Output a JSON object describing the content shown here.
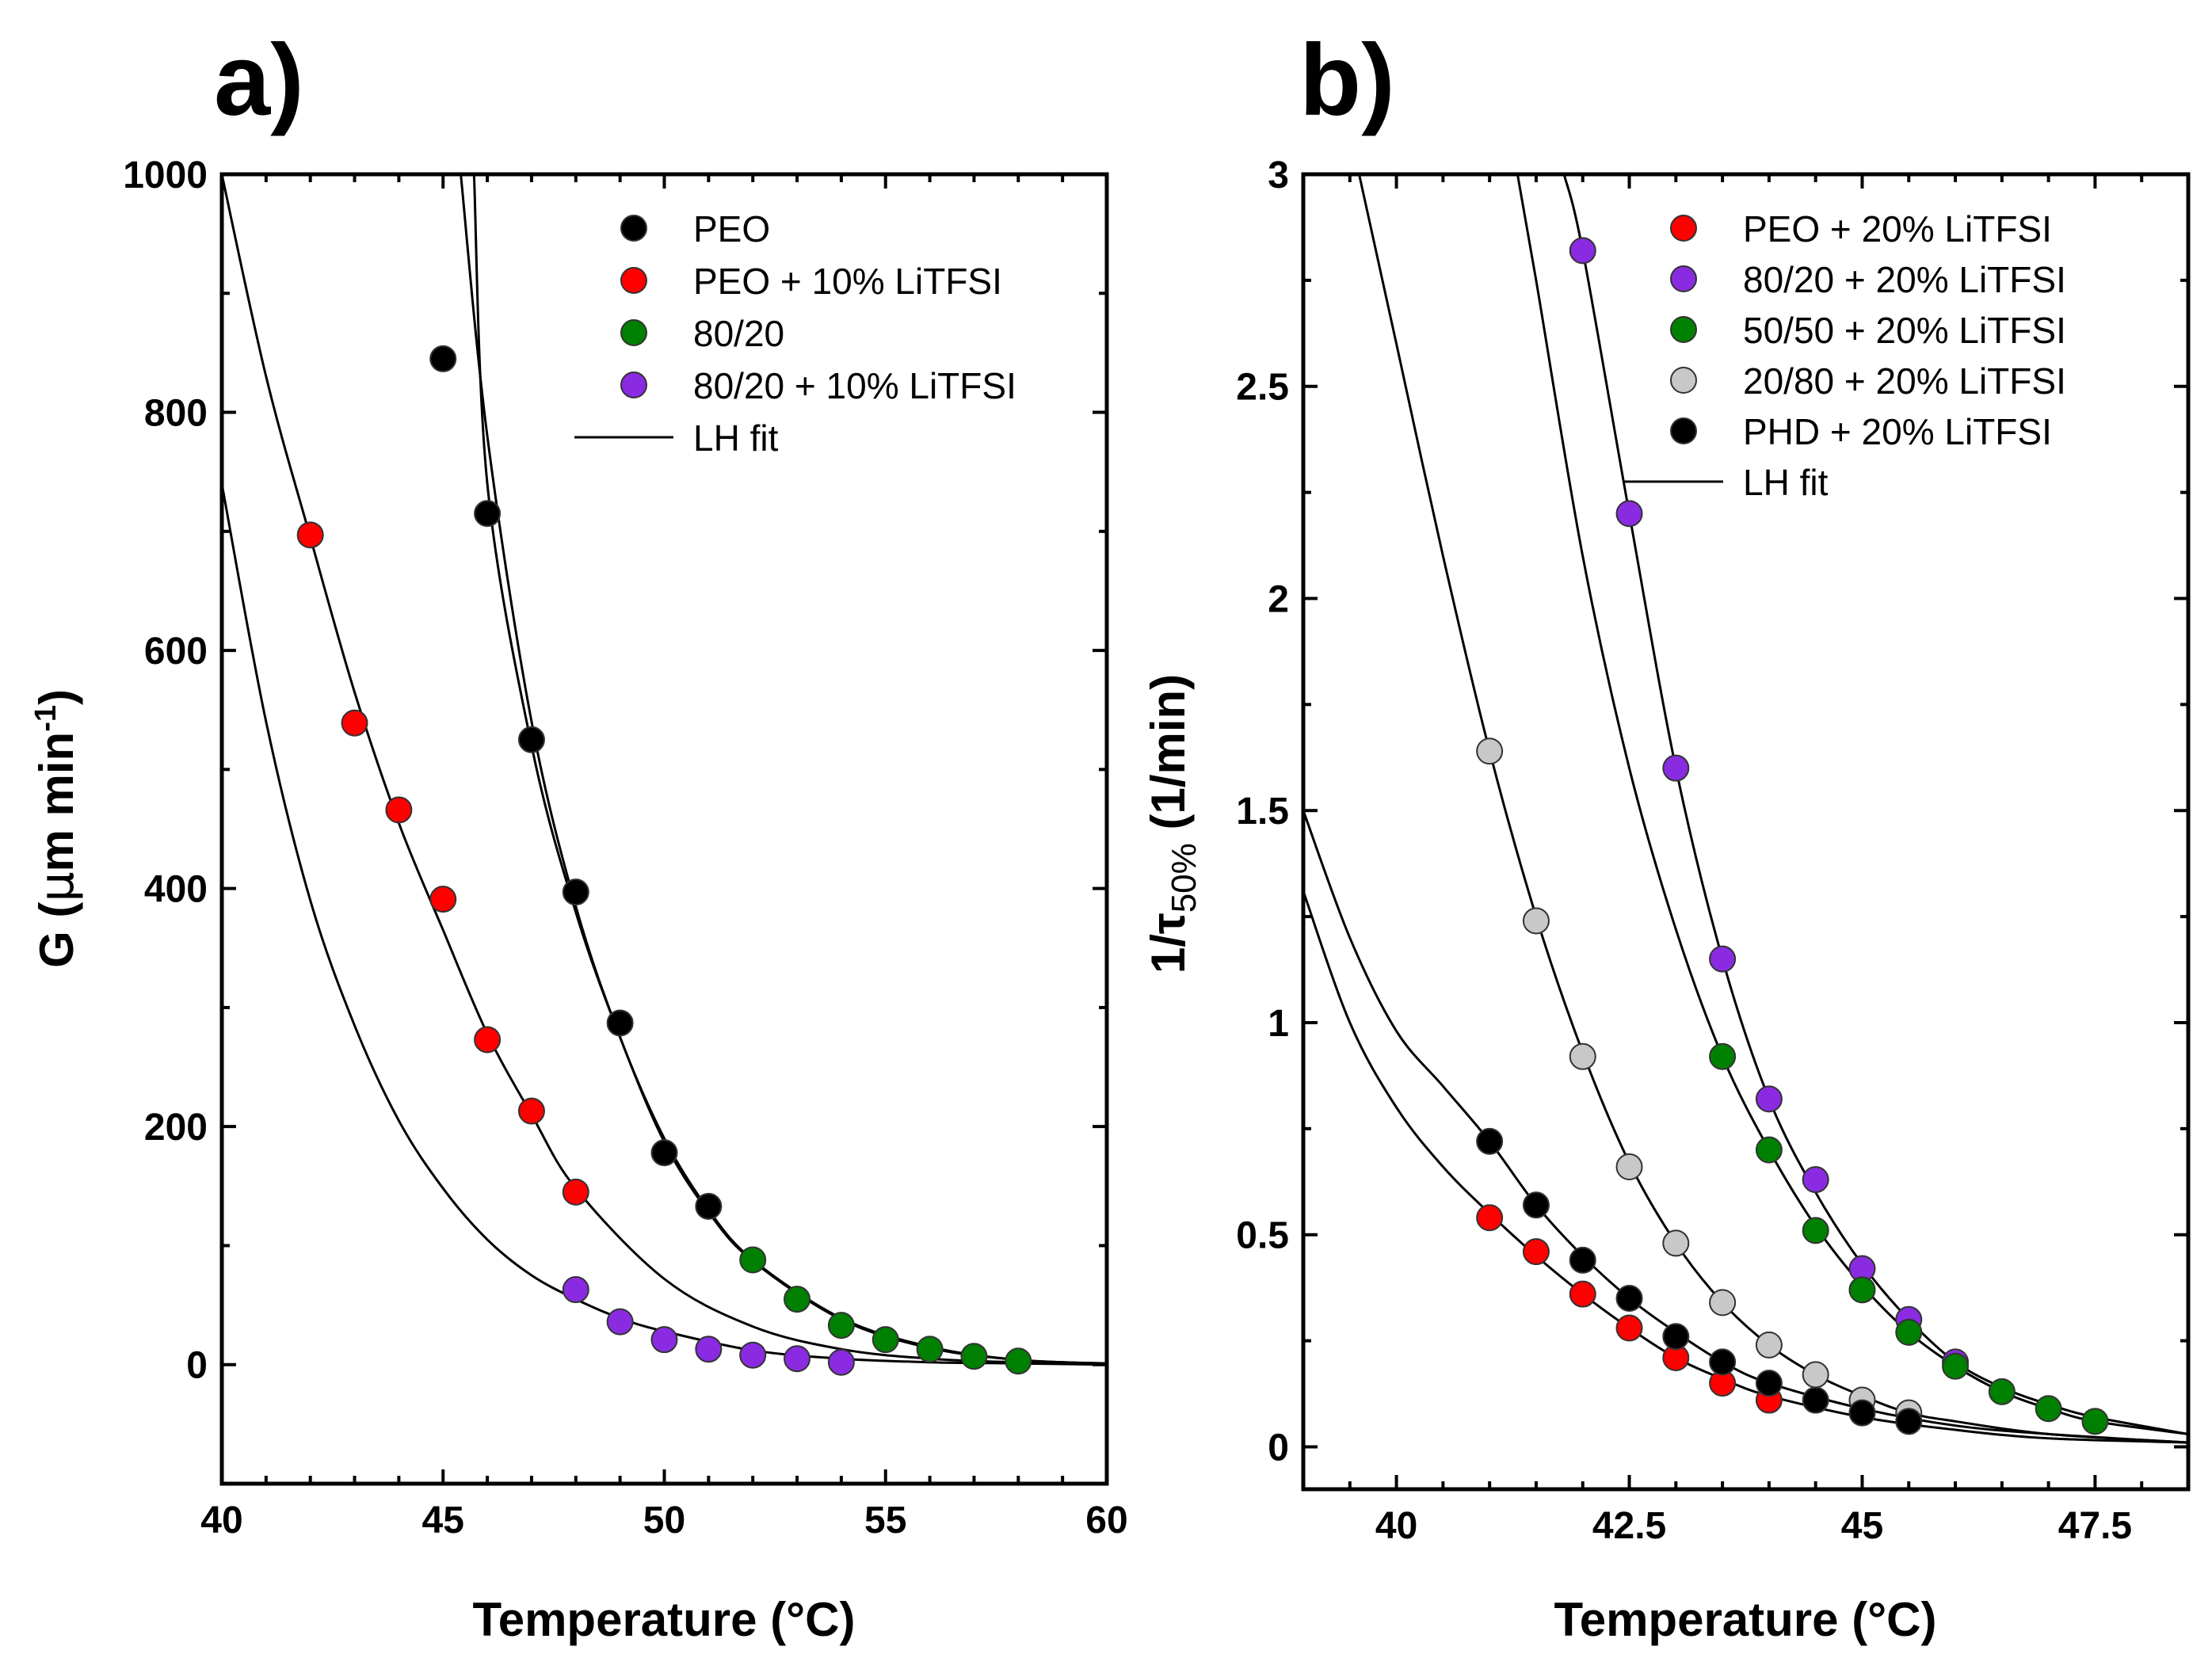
{
  "chart_data": [
    {
      "panel_label": "a)",
      "type": "scatter",
      "xlabel": "Temperature (°C)",
      "ylabel_main": "G (",
      "ylabel_mu": "μ",
      "ylabel_unit": "m min",
      "ylabel_sup": "-1",
      "ylabel_close": ")",
      "xlim": [
        40,
        60
      ],
      "ylim": [
        -100,
        1000
      ],
      "xticks": [
        40,
        45,
        50,
        55,
        60
      ],
      "yticks": [
        0,
        200,
        400,
        600,
        800,
        1000
      ],
      "legend_position": "top-right",
      "fit_label": "LH fit",
      "series": [
        {
          "name": "PEO",
          "color": "#000000",
          "x": [
            45,
            46,
            47,
            48,
            49,
            50,
            51
          ],
          "y": [
            845,
            715,
            525,
            397,
            287,
            178,
            133
          ]
        },
        {
          "name": "PEO + 10% LiTFSI",
          "color": "#ff0000",
          "x": [
            42,
            43,
            44,
            45,
            46,
            47,
            48
          ],
          "y": [
            697,
            539,
            466,
            391,
            273,
            213,
            145
          ]
        },
        {
          "name": "80/20",
          "color": "#008000",
          "x": [
            52,
            53,
            54,
            55,
            56,
            57,
            58
          ],
          "y": [
            88,
            55,
            33,
            21,
            13,
            7,
            3
          ]
        },
        {
          "name": "80/20 + 10% LiTFSI",
          "color": "#8a2be2",
          "x": [
            48,
            49,
            50,
            51,
            52,
            53,
            54
          ],
          "y": [
            63,
            36,
            21,
            13,
            8,
            5,
            2
          ]
        }
      ],
      "fits": [
        {
          "x": [
            45.4,
            46,
            47,
            48,
            49,
            50,
            51,
            52,
            54,
            56,
            58,
            60
          ],
          "y": [
            1000,
            780,
            540,
            385,
            275,
            190,
            130,
            88,
            39,
            15,
            4,
            1
          ]
        },
        {
          "x": [
            45.7,
            46,
            47,
            48,
            49,
            50,
            51,
            52,
            54,
            56,
            58,
            60
          ],
          "y": [
            1000,
            740,
            520,
            380,
            275,
            187,
            128,
            87,
            38,
            14,
            4,
            1
          ]
        },
        {
          "x": [
            40,
            41,
            42,
            43,
            44,
            45,
            46,
            47,
            48,
            50,
            52,
            54,
            56,
            58,
            60
          ],
          "y": [
            1000,
            830,
            695,
            565,
            455,
            365,
            278,
            210,
            148,
            72,
            32,
            13,
            5,
            2,
            1
          ]
        },
        {
          "x": [
            40,
            41,
            42,
            43,
            44,
            45,
            46,
            47,
            48,
            49,
            50,
            52,
            54,
            56,
            58,
            60
          ],
          "y": [
            740,
            540,
            390,
            285,
            205,
            148,
            105,
            75,
            55,
            39,
            28,
            12,
            5,
            2,
            1,
            0
          ]
        }
      ]
    },
    {
      "panel_label": "b)",
      "type": "scatter",
      "xlabel": "Temperature (°C)",
      "ylabel_main": "1/τ",
      "ylabel_sub": "50%",
      "ylabel_unit": " (1/min)",
      "xlim": [
        39,
        48.5
      ],
      "ylim": [
        -0.1,
        3
      ],
      "xticks": [
        40,
        42.5,
        45,
        47.5
      ],
      "xtick_labels": [
        "40",
        "42.5",
        "45",
        "47.5"
      ],
      "yticks": [
        0,
        0.5,
        1,
        1.5,
        2,
        2.5,
        3
      ],
      "ytick_labels": [
        "0",
        "0.5",
        "1",
        "1.5",
        "2",
        "2.5",
        "3"
      ],
      "legend_position": "top-right",
      "fit_label": "LH fit",
      "series": [
        {
          "name": "PEO + 20% LiTFSI",
          "color": "#ff0000",
          "x": [
            41,
            41.5,
            42,
            42.5,
            43,
            43.5,
            44
          ],
          "y": [
            0.54,
            0.46,
            0.36,
            0.28,
            0.21,
            0.15,
            0.11
          ]
        },
        {
          "name": "80/20 + 20% LiTFSI",
          "color": "#8a2be2",
          "x": [
            42,
            42.5,
            43,
            43.5,
            44,
            44.5,
            45,
            45.5,
            46
          ],
          "y": [
            2.82,
            2.2,
            1.6,
            1.15,
            0.82,
            0.63,
            0.42,
            0.3,
            0.2
          ]
        },
        {
          "name": "50/50 + 20% LiTFSI",
          "color": "#008000",
          "x": [
            43.5,
            44,
            44.5,
            45,
            45.5,
            46,
            46.5,
            47,
            47.5
          ],
          "y": [
            0.92,
            0.7,
            0.51,
            0.37,
            0.27,
            0.19,
            0.13,
            0.09,
            0.06
          ]
        },
        {
          "name": "20/80 + 20% LiTFSI",
          "color": "#c8c8c8",
          "x": [
            41,
            41.5,
            42,
            42.5,
            43,
            43.5,
            44,
            44.5,
            45,
            45.5
          ],
          "y": [
            1.64,
            1.24,
            0.92,
            0.66,
            0.48,
            0.34,
            0.24,
            0.17,
            0.11,
            0.08
          ]
        },
        {
          "name": "PHD + 20% LiTFSI",
          "color": "#000000",
          "x": [
            41,
            41.5,
            42,
            42.5,
            43,
            43.5,
            44,
            44.5,
            45,
            45.5
          ],
          "y": [
            0.72,
            0.57,
            0.44,
            0.35,
            0.26,
            0.2,
            0.15,
            0.11,
            0.08,
            0.06
          ]
        }
      ],
      "fits": [
        {
          "x": [
            39,
            39.5,
            40,
            40.5,
            41,
            41.5,
            42,
            42.5,
            43,
            43.5,
            44,
            45,
            46,
            47,
            48.5
          ],
          "y": [
            1.31,
            1.0,
            0.8,
            0.66,
            0.55,
            0.45,
            0.36,
            0.28,
            0.21,
            0.16,
            0.12,
            0.07,
            0.04,
            0.02,
            0.01
          ]
        },
        {
          "x": [
            39,
            39.5,
            40,
            40.5,
            41,
            41.5,
            42,
            42.5,
            43,
            43.5,
            44,
            45,
            46,
            47,
            48.5
          ],
          "y": [
            1.5,
            1.2,
            0.98,
            0.85,
            0.72,
            0.57,
            0.45,
            0.35,
            0.27,
            0.2,
            0.15,
            0.09,
            0.05,
            0.03,
            0.01
          ]
        },
        {
          "x": [
            39.6,
            40,
            40.5,
            41,
            41.5,
            42,
            42.5,
            43,
            43.5,
            44,
            44.5,
            45,
            45.5,
            46,
            47,
            48.5
          ],
          "y": [
            3.0,
            2.6,
            2.1,
            1.64,
            1.25,
            0.93,
            0.67,
            0.48,
            0.34,
            0.24,
            0.17,
            0.12,
            0.08,
            0.06,
            0.03,
            0.01
          ]
        },
        {
          "x": [
            41.3,
            41.5,
            42,
            42.5,
            43,
            43.5,
            44,
            44.5,
            45,
            45.5,
            46,
            46.5,
            47,
            47.5,
            48.5
          ],
          "y": [
            3.0,
            2.75,
            2.1,
            1.6,
            1.22,
            0.92,
            0.7,
            0.52,
            0.38,
            0.27,
            0.19,
            0.13,
            0.09,
            0.06,
            0.03
          ]
        },
        {
          "x": [
            41.8,
            42,
            42.5,
            43,
            43.5,
            44,
            44.5,
            45,
            45.5,
            46,
            46.5,
            47,
            47.5,
            48.5
          ],
          "y": [
            3.0,
            2.82,
            2.2,
            1.6,
            1.15,
            0.82,
            0.6,
            0.43,
            0.3,
            0.2,
            0.14,
            0.1,
            0.07,
            0.03
          ]
        }
      ]
    }
  ]
}
